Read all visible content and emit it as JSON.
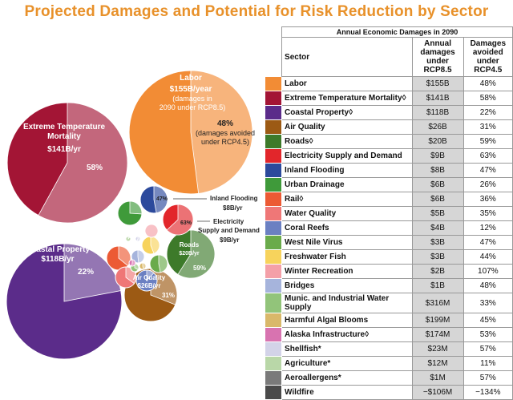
{
  "title": "Projected Damages and Potential for Risk Reduction by Sector",
  "table": {
    "super_header": "Annual Economic Damages in 2090",
    "headers": {
      "sector": "Sector",
      "col1": "Annual damages under RCP8.5",
      "col2": "Damages avoided under RCP4.5"
    }
  },
  "bubble_labels": {
    "labor": {
      "name": "Labor",
      "value": "$155B/year",
      "note1": "(damages in",
      "note2": "2090 under RCP8.5)",
      "pct": "48%",
      "pct_note1": "(damages avoided",
      "pct_note2": "under RCP4.5)"
    },
    "extreme": {
      "name1": "Extreme Temperature",
      "name2": "Mortality",
      "value": "$141B/yr",
      "pct": "58%"
    },
    "coastal": {
      "name": "Coastal Property",
      "value": "$118B/yr",
      "pct": "22%"
    },
    "air": {
      "name": "Air Quality",
      "value": "$26B/yr",
      "pct": "31%"
    },
    "roads": {
      "name": "Roads",
      "value": "$20B/yr",
      "pct": "59%"
    },
    "inland": {
      "name": "Inland Flooding",
      "value": "$8B/yr",
      "pct": "47%"
    },
    "electricity": {
      "name1": "Electricity",
      "name2": "Supply and Demand",
      "value": "$9B/yr",
      "pct": "63%"
    }
  },
  "chart_data": {
    "type": "table",
    "title": "Projected Damages and Potential for Risk Reduction by Sector",
    "columns": [
      "Sector",
      "Annual damages under RCP8.5",
      "Damages avoided under RCP4.5"
    ],
    "rows": [
      {
        "sector": "Labor",
        "damages": "$155B",
        "avoided": "48%",
        "color": "#f28c35",
        "value_b": 155,
        "pct_avoided": 48
      },
      {
        "sector": "Extreme Temperature Mortality◊",
        "damages": "$141B",
        "avoided": "58%",
        "color": "#a31535",
        "value_b": 141,
        "pct_avoided": 58
      },
      {
        "sector": "Coastal Property◊",
        "damages": "$118B",
        "avoided": "22%",
        "color": "#5b2c8a",
        "value_b": 118,
        "pct_avoided": 22
      },
      {
        "sector": "Air Quality",
        "damages": "$26B",
        "avoided": "31%",
        "color": "#9c5a14",
        "value_b": 26,
        "pct_avoided": 31
      },
      {
        "sector": "Roads◊",
        "damages": "$20B",
        "avoided": "59%",
        "color": "#3d7a2a",
        "value_b": 20,
        "pct_avoided": 59
      },
      {
        "sector": "Electricity Supply and Demand",
        "damages": "$9B",
        "avoided": "63%",
        "color": "#e2262b",
        "value_b": 9,
        "pct_avoided": 63
      },
      {
        "sector": "Inland Flooding",
        "damages": "$8B",
        "avoided": "47%",
        "color": "#2c4a9c",
        "value_b": 8,
        "pct_avoided": 47
      },
      {
        "sector": "Urban Drainage",
        "damages": "$6B",
        "avoided": "26%",
        "color": "#3f9a3a",
        "value_b": 6,
        "pct_avoided": 26
      },
      {
        "sector": "Rail◊",
        "damages": "$6B",
        "avoided": "36%",
        "color": "#ec5a34",
        "value_b": 6,
        "pct_avoided": 36
      },
      {
        "sector": "Water Quality",
        "damages": "$5B",
        "avoided": "35%",
        "color": "#ef7777",
        "value_b": 5,
        "pct_avoided": 35
      },
      {
        "sector": "Coral Reefs",
        "damages": "$4B",
        "avoided": "12%",
        "color": "#6b80c2",
        "value_b": 4,
        "pct_avoided": 12
      },
      {
        "sector": "West Nile Virus",
        "damages": "$3B",
        "avoided": "47%",
        "color": "#6aab4b",
        "value_b": 3,
        "pct_avoided": 47
      },
      {
        "sector": "Freshwater Fish",
        "damages": "$3B",
        "avoided": "44%",
        "color": "#f7d35c",
        "value_b": 3,
        "pct_avoided": 44
      },
      {
        "sector": "Winter Recreation",
        "damages": "$2B",
        "avoided": "107%",
        "color": "#f4a0a8",
        "value_b": 2,
        "pct_avoided": 107
      },
      {
        "sector": "Bridges",
        "damages": "$1B",
        "avoided": "48%",
        "color": "#a6b4dc",
        "value_b": 1,
        "pct_avoided": 48
      },
      {
        "sector": "Munic. and Industrial Water Supply",
        "damages": "$316M",
        "avoided": "33%",
        "color": "#92c47a",
        "value_b": 0.316,
        "pct_avoided": 33
      },
      {
        "sector": "Harmful Algal Blooms",
        "damages": "$199M",
        "avoided": "45%",
        "color": "#d9b86a",
        "value_b": 0.199,
        "pct_avoided": 45
      },
      {
        "sector": "Alaska Infrastructure◊",
        "damages": "$174M",
        "avoided": "53%",
        "color": "#d873b0",
        "value_b": 0.174,
        "pct_avoided": 53
      },
      {
        "sector": "Shellfish*",
        "damages": "$23M",
        "avoided": "57%",
        "color": "#d3d3e8",
        "value_b": 0.023,
        "pct_avoided": 57
      },
      {
        "sector": "Agriculture*",
        "damages": "$12M",
        "avoided": "11%",
        "color": "#b9d7a8",
        "value_b": 0.012,
        "pct_avoided": 11
      },
      {
        "sector": "Aeroallergens*",
        "damages": "$1M",
        "avoided": "57%",
        "color": "#7a7a7a",
        "value_b": 0.001,
        "pct_avoided": 57
      },
      {
        "sector": "Wildfire",
        "damages": "−$106M",
        "avoided": "−134%",
        "color": "#4a4a4a",
        "value_b": -0.106,
        "pct_avoided": -134
      }
    ],
    "bubbles": [
      {
        "sector": "Labor",
        "value_b": 155,
        "pct_avoided": 48
      },
      {
        "sector": "Extreme Temperature Mortality",
        "value_b": 141,
        "pct_avoided": 58
      },
      {
        "sector": "Coastal Property",
        "value_b": 118,
        "pct_avoided": 22
      },
      {
        "sector": "Air Quality",
        "value_b": 26,
        "pct_avoided": 31
      },
      {
        "sector": "Roads",
        "value_b": 20,
        "pct_avoided": 59
      },
      {
        "sector": "Inland Flooding",
        "value_b": 8,
        "pct_avoided": 47
      },
      {
        "sector": "Electricity Supply and Demand",
        "value_b": 9,
        "pct_avoided": 63
      }
    ]
  }
}
